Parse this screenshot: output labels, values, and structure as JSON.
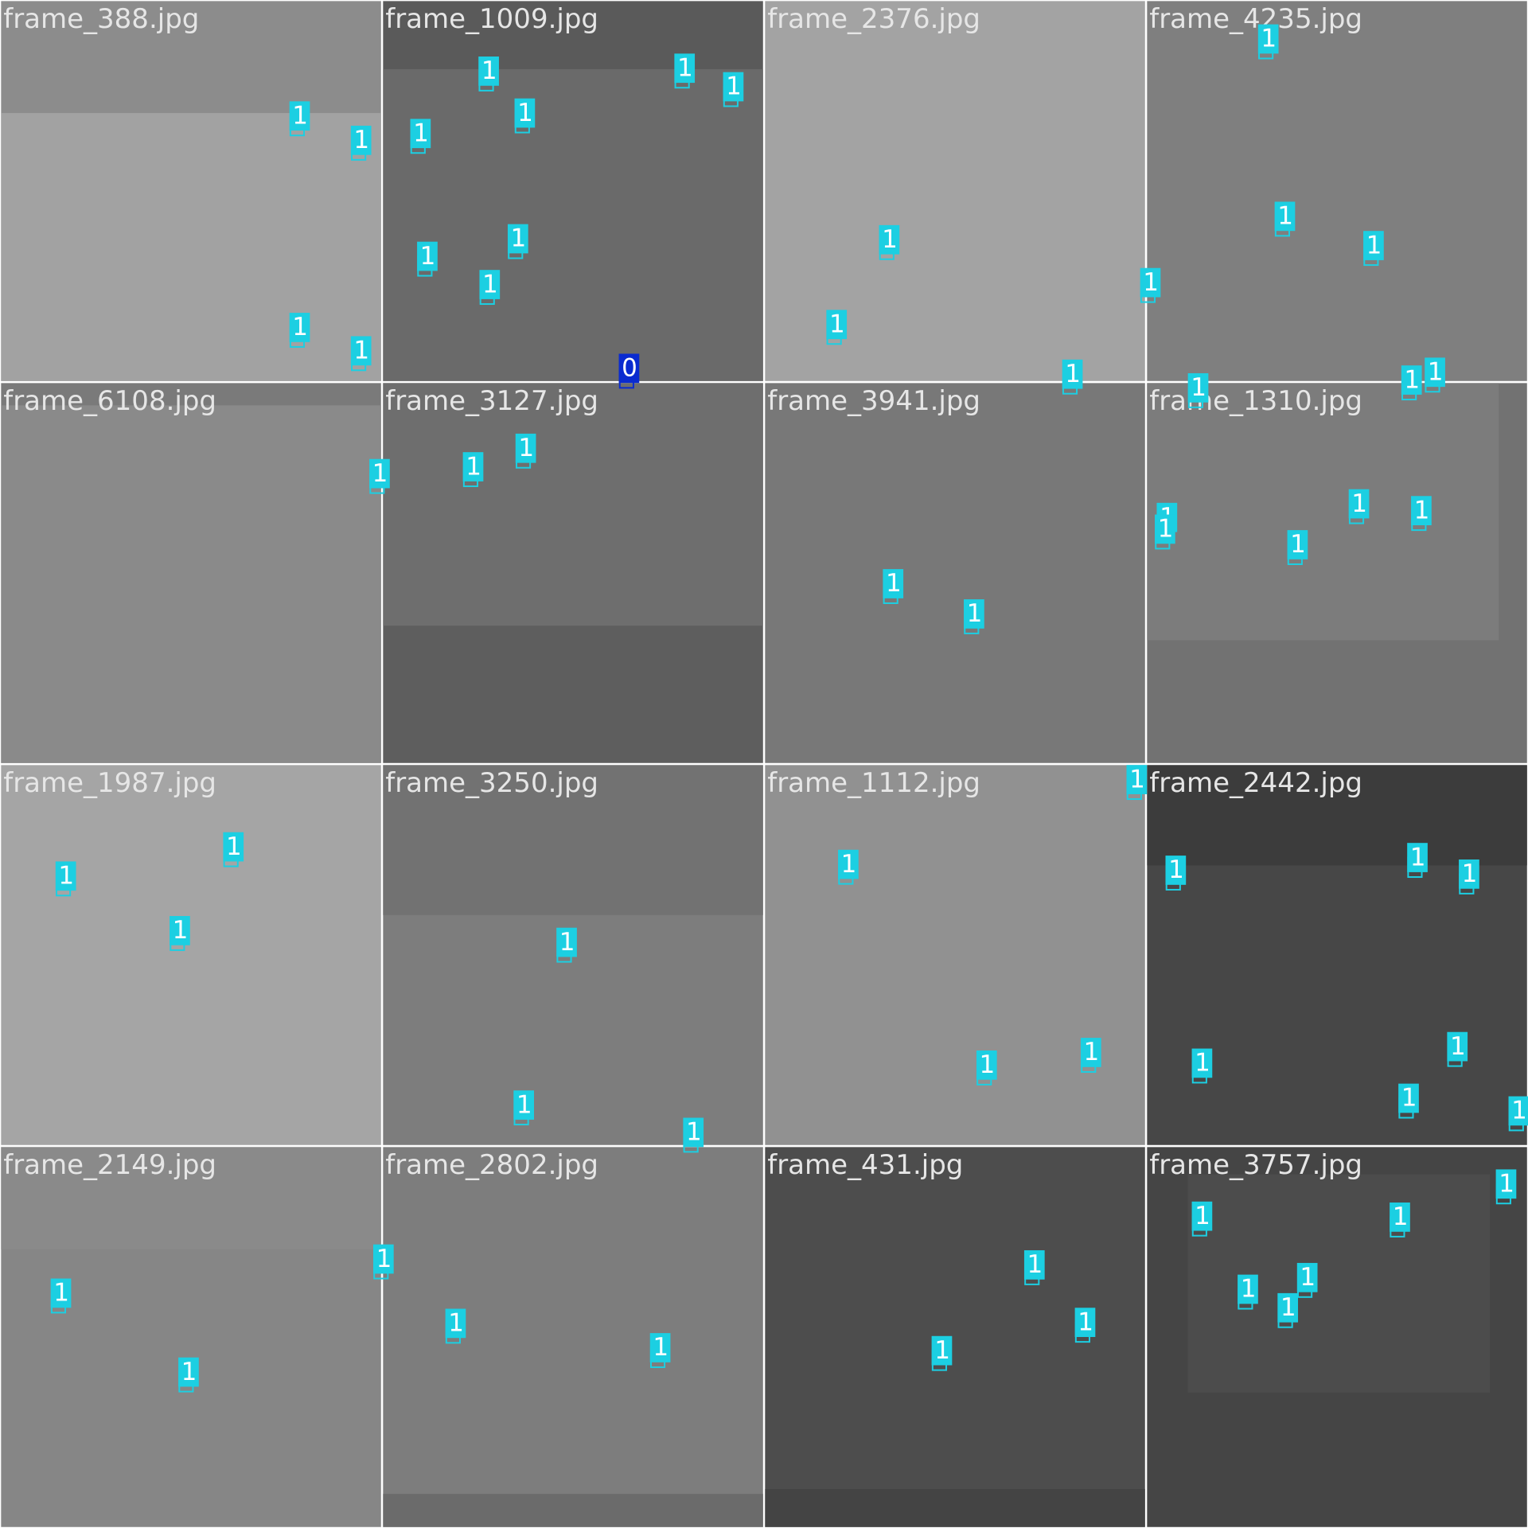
{
  "tiles": [
    {
      "title": "frame_388.jpg",
      "labels": [
        "1",
        "1",
        "1",
        "1"
      ]
    },
    {
      "title": "frame_1009.jpg",
      "labels": [
        "1",
        "1",
        "1",
        "1",
        "1",
        "1",
        "1",
        "1",
        "0"
      ]
    },
    {
      "title": "frame_2376.jpg",
      "labels": [
        "1",
        "1",
        "1"
      ]
    },
    {
      "title": "frame_4235.jpg",
      "labels": [
        "1",
        "1",
        "1",
        "1",
        "1",
        "1",
        "1"
      ]
    },
    {
      "title": "frame_6108.jpg",
      "labels": [
        "1"
      ]
    },
    {
      "title": "frame_3127.jpg",
      "labels": [
        "1",
        "1"
      ]
    },
    {
      "title": "frame_3941.jpg",
      "labels": [
        "1",
        "1"
      ]
    },
    {
      "title": "frame_1310.jpg",
      "labels": [
        "1",
        "1",
        "1",
        "1",
        "1"
      ]
    },
    {
      "title": "frame_1987.jpg",
      "labels": [
        "1",
        "1",
        "1"
      ]
    },
    {
      "title": "frame_3250.jpg",
      "labels": [
        "1",
        "1",
        "1"
      ]
    },
    {
      "title": "frame_1112.jpg",
      "labels": [
        "1",
        "1",
        "1",
        "1"
      ]
    },
    {
      "title": "frame_2442.jpg",
      "labels": [
        "1",
        "1",
        "1",
        "1",
        "1",
        "1",
        "1"
      ]
    },
    {
      "title": "frame_2149.jpg",
      "labels": [
        "1",
        "1",
        "1"
      ]
    },
    {
      "title": "frame_2802.jpg",
      "labels": [
        "1",
        "1"
      ]
    },
    {
      "title": "frame_431.jpg",
      "labels": [
        "1",
        "1",
        "1"
      ]
    },
    {
      "title": "frame_3757.jpg",
      "labels": [
        "1",
        "1",
        "1",
        "1",
        "1",
        "1"
      ]
    }
  ]
}
